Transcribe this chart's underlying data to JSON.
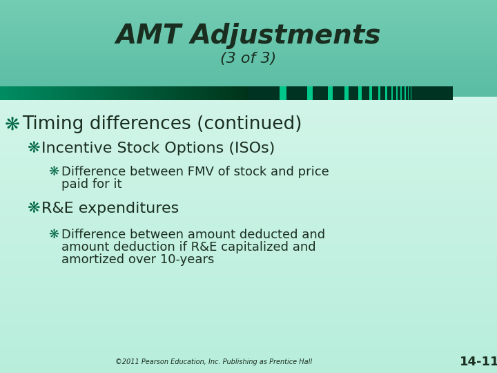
{
  "title": "AMT Adjustments",
  "subtitle": "(3 of 3)",
  "title_color": "#1a2e20",
  "text_color": "#1a2e20",
  "bullet_color": "#006644",
  "slide_number": "14-11",
  "footer": "©2011 Pearson Education, Inc. Publishing as Prentice Hall",
  "bullet1": "Timing differences (continued)",
  "bullet2": "Incentive Stock Options (ISOs)",
  "bullet3_line1": "Difference between FMV of stock and price",
  "bullet3_line2": "paid for it",
  "bullet4": "R&E expenditures",
  "bullet5_line1": "Difference between amount deducted and",
  "bullet5_line2": "amount deduction if R&E capitalized and",
  "bullet5_line3": "amortized over 10-years",
  "header_bg": "#5ec4a8",
  "content_bg_top": "#d4f0e8",
  "content_bg_bottom": "#b8e8d8",
  "bar_left_start": "#3dbf9a",
  "bar_left_end": "#0a3d2a",
  "bar_right_dark": "#0a3d2a",
  "bar_right_light": "#00c88a"
}
